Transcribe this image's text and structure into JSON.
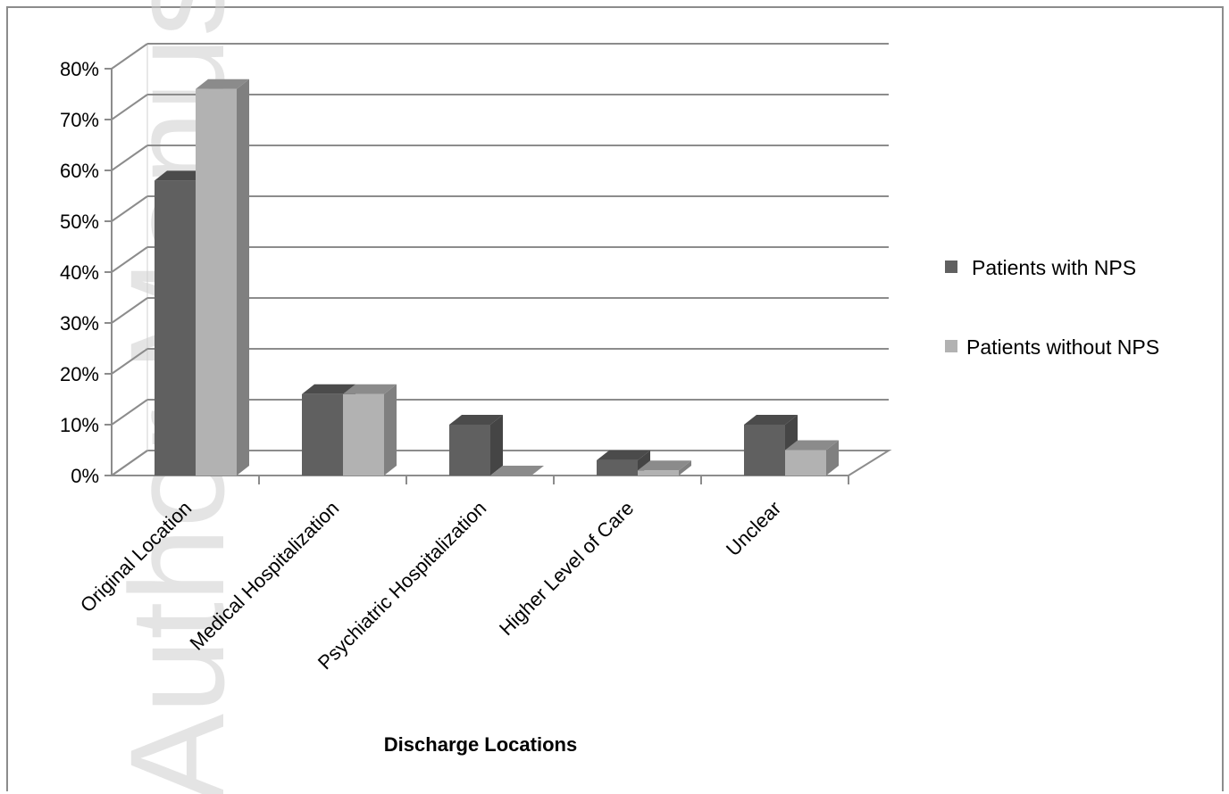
{
  "watermark": "Author Manuscript",
  "chart_data": {
    "type": "bar",
    "three_d": true,
    "categories": [
      "Original Location",
      "Medical Hospitalization",
      "Psychiatric Hospitalization",
      "Higher Level of Care",
      "Unclear"
    ],
    "series": [
      {
        "name": "Patients with NPS",
        "values": [
          58,
          16,
          10,
          3,
          10
        ],
        "color": "#606060"
      },
      {
        "name": "Patients without NPS",
        "values": [
          76,
          16,
          0,
          1,
          5
        ],
        "color": "#b2b2b2"
      }
    ],
    "xlabel": "Discharge Locations",
    "ylabel": "",
    "ylim": [
      0,
      80
    ],
    "yticks": [
      "0%",
      "10%",
      "20%",
      "30%",
      "40%",
      "50%",
      "60%",
      "70%",
      "80%"
    ],
    "grid": true,
    "legend_position": "right"
  }
}
